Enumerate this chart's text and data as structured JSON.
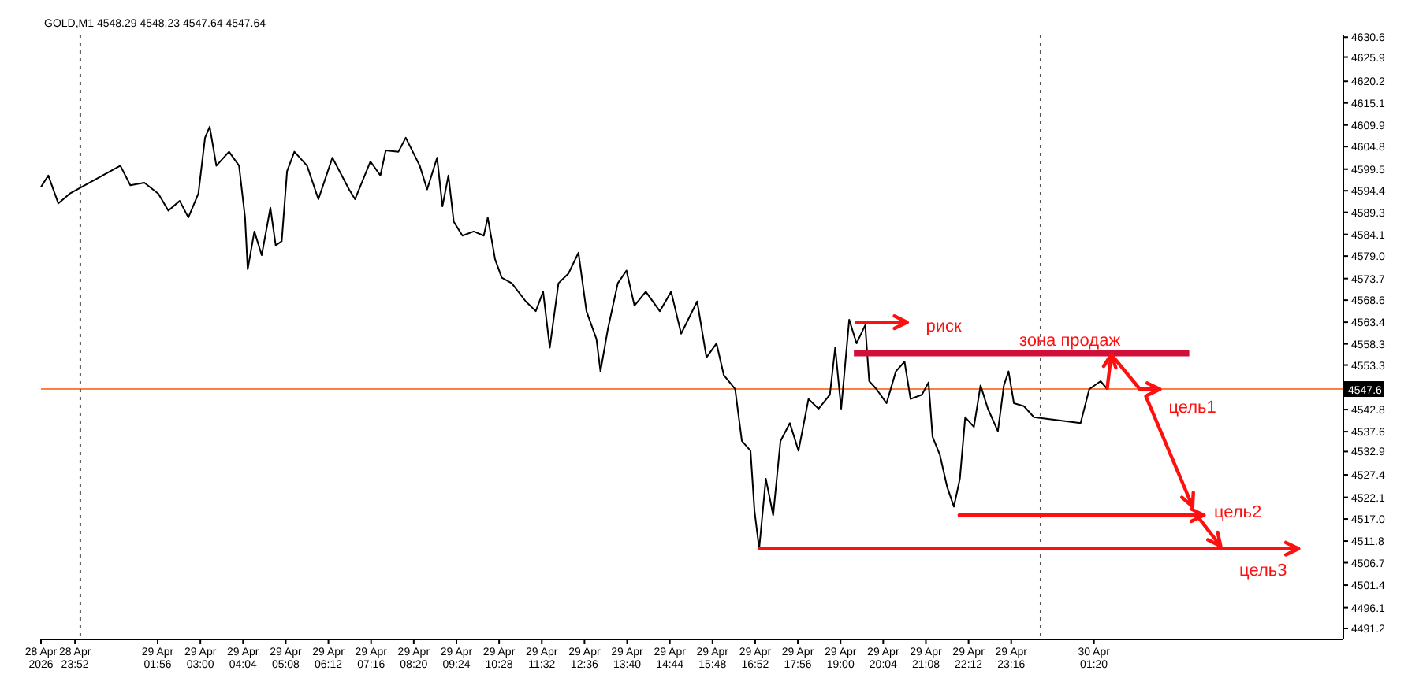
{
  "chart_data": {
    "type": "line",
    "title": "GOLD,M1 4548.29 4548.23 4547.64 4547.64",
    "xlim": [
      "2026-04-28T23:01",
      "2026-04-30T07:34"
    ],
    "xticks": [
      {
        "value": "2026-04-28T23:01",
        "label": "28 Apr 2026"
      },
      {
        "value": "2026-04-28T23:52",
        "label": "28 Apr 23:52"
      },
      {
        "value": "2026-04-29T01:56",
        "label": "29 Apr 01:56"
      },
      {
        "value": "2026-04-29T03:00",
        "label": "29 Apr 03:00"
      },
      {
        "value": "2026-04-29T04:04",
        "label": "29 Apr 04:04"
      },
      {
        "value": "2026-04-29T05:08",
        "label": "29 Apr 05:08"
      },
      {
        "value": "2026-04-29T06:12",
        "label": "29 Apr 06:12"
      },
      {
        "value": "2026-04-29T07:16",
        "label": "29 Apr 07:16"
      },
      {
        "value": "2026-04-29T08:20",
        "label": "29 Apr 08:20"
      },
      {
        "value": "2026-04-29T09:24",
        "label": "29 Apr 09:24"
      },
      {
        "value": "2026-04-29T10:28",
        "label": "29 Apr 10:28"
      },
      {
        "value": "2026-04-29T11:32",
        "label": "29 Apr 11:32"
      },
      {
        "value": "2026-04-29T12:36",
        "label": "29 Apr 12:36"
      },
      {
        "value": "2026-04-29T13:40",
        "label": "29 Apr 13:40"
      },
      {
        "value": "2026-04-29T14:44",
        "label": "29 Apr 14:44"
      },
      {
        "value": "2026-04-29T15:48",
        "label": "29 Apr 15:48"
      },
      {
        "value": "2026-04-29T16:52",
        "label": "29 Apr 16:52"
      },
      {
        "value": "2026-04-29T17:56",
        "label": "29 Apr 17:56"
      },
      {
        "value": "2026-04-29T19:00",
        "label": "29 Apr 19:00"
      },
      {
        "value": "2026-04-29T20:04",
        "label": "29 Apr 20:04"
      },
      {
        "value": "2026-04-29T21:08",
        "label": "29 Apr 21:08"
      },
      {
        "value": "2026-04-29T22:12",
        "label": "29 Apr 22:12"
      },
      {
        "value": "2026-04-29T23:16",
        "label": "29 Apr 23:16"
      },
      {
        "value": "2026-04-30T01:20",
        "label": "30 Apr 01:20"
      }
    ],
    "ylim": [
      4488.6,
      4631.2
    ],
    "yticks": [
      4630.6,
      4625.9,
      4620.2,
      4615.1,
      4609.9,
      4604.8,
      4599.5,
      4594.4,
      4589.3,
      4584.1,
      {
        "value": 4579,
        "label": "4579.0"
      },
      4573.7,
      4568.6,
      4563.4,
      4558.3,
      4553.3,
      4542.8,
      4537.6,
      4532.9,
      4527.4,
      4522.1,
      {
        "value": 4517,
        "label": "4517.0"
      },
      4511.8,
      4506.7,
      4501.4,
      4496.1,
      4491.2
    ],
    "grid": false,
    "series": [
      {
        "color": "#000000",
        "x": [
          "2026-04-28T23:01",
          "2026-04-28T23:12",
          "2026-04-28T23:27",
          "2026-04-28T23:44",
          "2026-04-29T01:00",
          "2026-04-29T01:15",
          "2026-04-29T01:36",
          "2026-04-29T01:57",
          "2026-04-29T02:12",
          "2026-04-29T02:29",
          "2026-04-29T02:42",
          "2026-04-29T02:57",
          "2026-04-29T03:07",
          "2026-04-29T03:14",
          "2026-04-29T03:24",
          "2026-04-29T03:43",
          "2026-04-29T03:58",
          "2026-04-29T04:07",
          "2026-04-29T04:11",
          "2026-04-29T04:21",
          "2026-04-29T04:32",
          "2026-04-29T04:45",
          "2026-04-29T04:53",
          "2026-04-29T05:02",
          "2026-04-29T05:10",
          "2026-04-29T05:21",
          "2026-04-29T05:40",
          "2026-04-29T05:57",
          "2026-04-29T06:18",
          "2026-04-29T06:43",
          "2026-04-29T06:52",
          "2026-04-29T07:15",
          "2026-04-29T07:30",
          "2026-04-29T07:38",
          "2026-04-29T07:57",
          "2026-04-29T08:08",
          "2026-04-29T08:29",
          "2026-04-29T08:40",
          "2026-04-29T08:55",
          "2026-04-29T09:03",
          "2026-04-29T09:12",
          "2026-04-29T09:20",
          "2026-04-29T09:33",
          "2026-04-29T09:50",
          "2026-04-29T10:05",
          "2026-04-29T10:11",
          "2026-04-29T10:22",
          "2026-04-29T10:32",
          "2026-04-29T10:47",
          "2026-04-29T11:08",
          "2026-04-29T11:23",
          "2026-04-29T11:34",
          "2026-04-29T11:44",
          "2026-04-29T11:57",
          "2026-04-29T12:12",
          "2026-04-29T12:27",
          "2026-04-29T12:39",
          "2026-04-29T12:54",
          "2026-04-29T13:00",
          "2026-04-29T13:11",
          "2026-04-29T13:26",
          "2026-04-29T13:39",
          "2026-04-29T13:51",
          "2026-04-29T14:08",
          "2026-04-29T14:29",
          "2026-04-29T14:46",
          "2026-04-29T15:01",
          "2026-04-29T15:25",
          "2026-04-29T15:39",
          "2026-04-29T15:54",
          "2026-04-29T16:05",
          "2026-04-29T16:22",
          "2026-04-29T16:32",
          "2026-04-29T16:45",
          "2026-04-29T16:51",
          "2026-04-29T16:58",
          "2026-04-29T17:08",
          "2026-04-29T17:19",
          "2026-04-29T17:30",
          "2026-04-29T17:44",
          "2026-04-29T17:57",
          "2026-04-29T18:12",
          "2026-04-29T18:27",
          "2026-04-29T18:44",
          "2026-04-29T18:52",
          "2026-04-29T19:01",
          "2026-04-29T19:13",
          "2026-04-29T19:24",
          "2026-04-29T19:37",
          "2026-04-29T19:43",
          "2026-04-29T19:54",
          "2026-04-29T20:09",
          "2026-04-29T20:23",
          "2026-04-29T20:36",
          "2026-04-29T20:45",
          "2026-04-29T21:02",
          "2026-04-29T21:12",
          "2026-04-29T21:18",
          "2026-04-29T21:29",
          "2026-04-29T21:40",
          "2026-04-29T21:50",
          "2026-04-29T21:59",
          "2026-04-29T22:07",
          "2026-04-29T22:20",
          "2026-04-29T22:30",
          "2026-04-29T22:41",
          "2026-04-29T22:56",
          "2026-04-29T23:05",
          "2026-04-29T23:12",
          "2026-04-29T23:20",
          "2026-04-29T23:35",
          "2026-04-29T23:50",
          "2026-04-30T01:00",
          "2026-04-30T01:13",
          "2026-04-30T01:30",
          "2026-04-30T01:40"
        ],
        "values": [
          4595.3,
          4598.0,
          4591.4,
          4593.7,
          4600.3,
          4595.7,
          4596.3,
          4593.7,
          4589.7,
          4592.0,
          4588.1,
          4593.7,
          4606.9,
          4609.5,
          4600.3,
          4603.6,
          4600.3,
          4588.1,
          4575.9,
          4584.8,
          4579.2,
          4590.4,
          4581.5,
          4582.5,
          4599.0,
          4603.6,
          4600.3,
          4592.4,
          4602.2,
          4594.7,
          4592.4,
          4601.3,
          4598.0,
          4603.9,
          4603.6,
          4606.9,
          4600.3,
          4594.7,
          4602.2,
          4590.7,
          4598.0,
          4587.1,
          4583.8,
          4584.8,
          4583.8,
          4588.1,
          4578.2,
          4573.9,
          4572.6,
          4568.3,
          4566.0,
          4570.6,
          4557.4,
          4572.6,
          4574.9,
          4579.8,
          4566.0,
          4559.4,
          4551.8,
          4561.7,
          4572.6,
          4575.6,
          4567.3,
          4570.6,
          4566.0,
          4570.6,
          4560.7,
          4568.3,
          4555.1,
          4558.4,
          4550.9,
          4547.6,
          4535.4,
          4533.1,
          4518.9,
          4510.0,
          4526.5,
          4517.9,
          4535.4,
          4539.6,
          4533.1,
          4545.3,
          4543.0,
          4546.3,
          4557.4,
          4543.0,
          4564.0,
          4558.4,
          4562.7,
          4549.5,
          4547.6,
          4544.3,
          4551.8,
          4554.1,
          4545.3,
          4546.3,
          4549.2,
          4536.4,
          4532.1,
          4524.5,
          4519.9,
          4526.5,
          4541.0,
          4538.7,
          4548.5,
          4543.0,
          4537.7,
          4548.5,
          4551.8,
          4544.3,
          4543.6,
          4541.0,
          4539.6,
          4547.6,
          4549.5,
          4547.6
        ]
      }
    ],
    "ref_lines": [
      {
        "axis": "y",
        "value": 4547.64,
        "label": "4547.6",
        "color": "#ff7f3f",
        "line_style": "solid"
      },
      {
        "axis": "x",
        "value": "2026-04-29T00:00",
        "color": "#555555",
        "line_style": "dotted"
      },
      {
        "axis": "x",
        "value": "2026-04-30T00:00",
        "color": "#555555",
        "line_style": "dotted"
      }
    ],
    "annotations": [
      "риск",
      "зона продаж",
      "цель1",
      "цель2",
      "цель3"
    ]
  }
}
